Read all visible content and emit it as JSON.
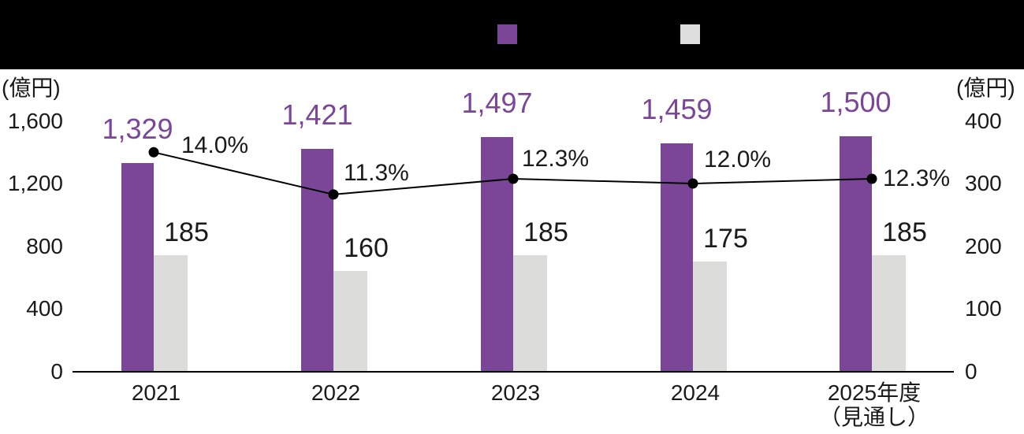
{
  "header": {
    "background": "#000000",
    "legend": [
      {
        "name": "series-primary-swatch",
        "color": "#7B4697"
      },
      {
        "name": "series-secondary-swatch",
        "color": "#DDDEDD"
      }
    ]
  },
  "chart_data": {
    "type": "bar",
    "subtype": "grouped-bars-with-percent-line",
    "title": "",
    "categories": [
      "2021",
      "2022",
      "2023",
      "2024",
      "2025年度\n（見通し）"
    ],
    "series": [
      {
        "name": "primary-bar",
        "type": "bar",
        "axis": "left",
        "color": "#7B4697",
        "values": [
          1329,
          1421,
          1497,
          1459,
          1500
        ],
        "labels": [
          "1,329",
          "1,421",
          "1,497",
          "1,459",
          "1,500"
        ],
        "label_color": "#7B4697"
      },
      {
        "name": "secondary-bar",
        "type": "bar",
        "axis": "right",
        "color": "#DCDDDB",
        "values": [
          185,
          160,
          185,
          175,
          185
        ],
        "labels": [
          "185",
          "160",
          "185",
          "175",
          "185"
        ],
        "label_color": "#1a1a1a"
      },
      {
        "name": "percent-line",
        "type": "line",
        "axis": "hidden-percent",
        "color": "#000000",
        "values": [
          14.0,
          11.3,
          12.3,
          12.0,
          12.3
        ],
        "labels": [
          "14.0%",
          "11.3%",
          "12.3%",
          "12.0%",
          "12.3%"
        ],
        "label_color": "#1a1a1a"
      }
    ],
    "left_axis": {
      "unit": "(億円)",
      "tick_values": [
        0,
        400,
        800,
        1200,
        1600
      ],
      "tick_labels": [
        "0",
        "400",
        "800",
        "1,200",
        "1,600"
      ],
      "min": 0,
      "max": 1600
    },
    "right_axis": {
      "unit": "(億円)",
      "tick_values": [
        0,
        100,
        200,
        300,
        400
      ],
      "tick_labels": [
        "0",
        "100",
        "200",
        "300",
        "400"
      ],
      "min": 0,
      "max": 400
    },
    "percent_axis": {
      "min": 0,
      "max": 16,
      "visible": false
    },
    "grid": false,
    "legend_position": "top"
  }
}
